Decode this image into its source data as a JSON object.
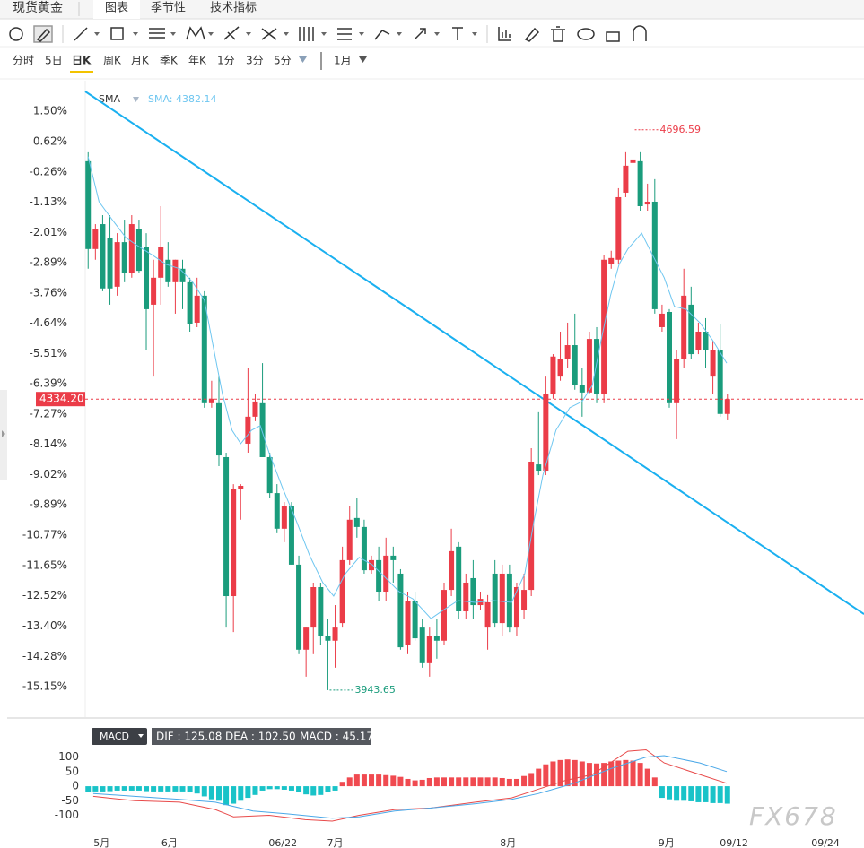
{
  "header": {
    "tabs": [
      "现货黄金",
      "图表",
      "季节性",
      "技术指标"
    ],
    "periods": [
      "分时",
      "5日",
      "日K",
      "周K",
      "月K",
      "季K",
      "年K",
      "1分",
      "3分",
      "5分",
      "1月"
    ]
  },
  "watermark": "FX678",
  "chart_data": [
    {
      "type": "candlestick",
      "x": [
        0,
        1,
        2,
        3,
        4,
        5,
        6,
        7,
        8,
        9,
        10,
        11,
        12,
        13,
        14,
        15,
        16,
        17,
        18,
        19,
        20,
        21,
        22,
        23,
        24,
        25,
        26,
        27,
        28,
        29,
        30,
        31,
        32,
        33,
        34,
        35,
        36,
        37,
        38,
        39,
        40,
        41,
        42,
        43,
        44,
        45,
        46,
        47,
        48,
        49,
        50,
        51,
        52,
        53,
        54,
        55,
        56,
        57,
        58,
        59,
        60,
        61,
        62,
        63,
        64,
        65,
        66,
        67,
        68,
        69,
        70,
        71,
        72,
        73,
        74,
        75,
        76,
        77,
        78,
        79,
        80,
        81,
        82,
        83,
        84,
        85,
        86,
        87,
        88
      ],
      "open": [
        0.05,
        -2.49,
        -1.77,
        -2.16,
        -3.58,
        -2.29,
        -3.19,
        -1.9,
        -2.42,
        -4.1,
        -3.32,
        -2.8,
        -3.45,
        -3.06,
        -3.45,
        -4.62,
        -3.84,
        -6.95,
        -6.95,
        -8.51,
        -12.53,
        -9.42,
        -8.12,
        -7.34,
        -6.95,
        -8.51,
        -9.55,
        -10.58,
        -9.93,
        -11.62,
        -14.08,
        -13.44,
        -12.27,
        -13.69,
        -13.82,
        -13.31,
        -11.49,
        -10.27,
        -10.53,
        -11.78,
        -11.49,
        -12.4,
        -11.36,
        -11.88,
        -13.95,
        -12.66,
        -13.44,
        -14.47,
        -13.69,
        -13.82,
        -12.35,
        -11.1,
        -12.97,
        -12.01,
        -12.79,
        -13.44,
        -11.88,
        -13.31,
        -11.88,
        -13.44,
        -12.92,
        -12.35,
        -8.72,
        -8.9,
        -6.69,
        -6.18,
        -5.66,
        -5.27,
        -6.43,
        -6.64,
        -5.09,
        -6.69,
        -2.93,
        -2.8,
        -0.86,
        0.0,
        0.05,
        -1.2,
        -1.12,
        -4.75,
        -4.31,
        -6.95,
        -5.66,
        -4.1,
        -5.4,
        -4.88,
        -6.18,
        -5.4,
        -7.26
      ],
      "high": [
        0.31,
        -1.77,
        -1.51,
        -1.51,
        -2.03,
        -1.64,
        -1.51,
        -1.64,
        -2.03,
        -2.8,
        -1.25,
        -2.29,
        -2.8,
        -2.8,
        -3.32,
        -3.32,
        -3.71,
        -6.3,
        -6.18,
        -8.38,
        -9.29,
        -9.29,
        -5.92,
        -6.69,
        -5.79,
        -8.38,
        -9.29,
        -9.81,
        -9.81,
        -11.36,
        -13.44,
        -12.14,
        -12.14,
        -13.18,
        -12.79,
        -11.1,
        -9.93,
        -9.68,
        -10.32,
        -11.36,
        -11.1,
        -10.84,
        -11.1,
        -11.75,
        -12.4,
        -12.4,
        -13.18,
        -13.44,
        -13.18,
        -12.14,
        -10.58,
        -10.97,
        -11.88,
        -11.49,
        -12.4,
        -12.5,
        -11.49,
        -11.62,
        -11.62,
        -12.14,
        -11.88,
        -8.25,
        -7.21,
        -6.18,
        -5.53,
        -4.88,
        -4.62,
        -4.36,
        -5.92,
        -4.88,
        -4.75,
        -2.67,
        -2.54,
        -0.73,
        0.31,
        0.96,
        0.31,
        -0.6,
        -0.47,
        -4.1,
        -4.23,
        -5.4,
        -3.06,
        -3.58,
        -4.62,
        -4.49,
        -5.14,
        -4.67,
        -6.69
      ],
      "low": [
        -3.06,
        -2.8,
        -3.71,
        -4.1,
        -3.84,
        -3.45,
        -3.32,
        -3.19,
        -5.4,
        -6.18,
        -4.1,
        -3.58,
        -4.36,
        -4.23,
        -4.88,
        -4.75,
        -7.08,
        -7.08,
        -8.77,
        -13.44,
        -13.57,
        -10.32,
        -8.38,
        -7.47,
        -8.51,
        -9.68,
        -10.71,
        -10.97,
        -11.62,
        -14.21,
        -14.86,
        -14.21,
        -13.95,
        -15.25,
        -14.6,
        -13.44,
        -11.62,
        -10.84,
        -11.88,
        -11.88,
        -12.66,
        -12.66,
        -12.14,
        -14.08,
        -14.21,
        -13.82,
        -14.6,
        -14.86,
        -14.34,
        -13.95,
        -12.53,
        -13.18,
        -13.18,
        -13.18,
        -12.92,
        -14.08,
        -13.44,
        -13.69,
        -13.57,
        -13.69,
        -13.18,
        -12.53,
        -9.03,
        -9.03,
        -6.82,
        -6.3,
        -5.92,
        -6.56,
        -7.34,
        -6.69,
        -6.95,
        -6.95,
        -3.06,
        -2.93,
        -0.99,
        -0.21,
        -1.38,
        -1.38,
        -4.36,
        -4.88,
        -7.08,
        -7.99,
        -5.92,
        -5.66,
        -5.53,
        -5.92,
        -6.69,
        -7.34,
        -7.42
      ],
      "close": [
        -2.49,
        -1.9,
        -3.63,
        -3.63,
        -2.29,
        -3.19,
        -1.77,
        -3.12,
        -4.23,
        -3.32,
        -2.42,
        -3.45,
        -2.8,
        -3.45,
        -4.67,
        -3.84,
        -6.95,
        -6.82,
        -8.46,
        -12.53,
        -9.42,
        -9.34,
        -7.34,
        -6.9,
        -8.51,
        -9.55,
        -10.58,
        -9.93,
        -11.62,
        -14.08,
        -13.44,
        -12.27,
        -13.69,
        -13.82,
        -13.44,
        -11.49,
        -10.32,
        -10.53,
        -11.78,
        -11.49,
        -12.4,
        -11.36,
        -11.49,
        -14.01,
        -12.66,
        -13.75,
        -14.47,
        -13.69,
        -13.82,
        -12.35,
        -11.23,
        -12.97,
        -12.14,
        -12.79,
        -12.61,
        -12.71,
        -13.31,
        -11.88,
        -13.44,
        -12.27,
        -12.35,
        -8.64,
        -8.9,
        -6.69,
        -5.6,
        -5.66,
        -5.27,
        -6.43,
        -6.64,
        -5.09,
        -6.69,
        -2.8,
        -2.75,
        -0.99,
        -0.08,
        0.1,
        -1.25,
        -1.12,
        -4.23,
        -4.36,
        -6.95,
        -5.66,
        -3.84,
        -5.53,
        -4.88,
        -5.4,
        -5.4,
        -7.26,
        -6.83
      ],
      "colors": {
        "up": "#eb3c48",
        "down": "#1a9c7c"
      },
      "xlim": [
        -0.4,
        106.8
      ],
      "xticks": [
        {
          "value": 1.85,
          "label": "5月"
        },
        {
          "value": 11.2,
          "label": "6月"
        },
        {
          "value": 26.8,
          "label": "06/22"
        },
        {
          "value": 34,
          "label": "7月"
        },
        {
          "value": 57.8,
          "label": "8月"
        },
        {
          "value": 79.6,
          "label": "9月"
        },
        {
          "value": 88.9,
          "label": "09/12"
        },
        {
          "value": 101.5,
          "label": "09/24"
        }
      ],
      "ylim": [
        -16.03,
        2.38
      ],
      "yticks": [
        {
          "value": 1.5,
          "label": "1.50%"
        },
        {
          "value": 0.62,
          "label": "0.62%"
        },
        {
          "value": -0.26,
          "label": "-0.26%"
        },
        {
          "value": -1.13,
          "label": "-1.13%"
        },
        {
          "value": -2.01,
          "label": "-2.01%"
        },
        {
          "value": -2.89,
          "label": "-2.89%"
        },
        {
          "value": -3.76,
          "label": "-3.76%"
        },
        {
          "value": -4.64,
          "label": "-4.64%"
        },
        {
          "value": -5.51,
          "label": "-5.51%"
        },
        {
          "value": -6.39,
          "label": "-6.39%"
        },
        {
          "value": -7.27,
          "label": "-7.27%"
        },
        {
          "value": -8.14,
          "label": "-8.14%"
        },
        {
          "value": -9.02,
          "label": "-9.02%"
        },
        {
          "value": -9.89,
          "label": "-9.89%"
        },
        {
          "value": -10.77,
          "label": "-10.77%"
        },
        {
          "value": -11.65,
          "label": "-11.65%"
        },
        {
          "value": -12.52,
          "label": "-12.52%"
        },
        {
          "value": -13.4,
          "label": "-13.40%"
        },
        {
          "value": -14.28,
          "label": "-14.28%"
        },
        {
          "value": -15.15,
          "label": "-15.15%"
        }
      ],
      "sma": {
        "name": "SMA",
        "label": "SMA: 4382.14",
        "color": "#6ec6f0",
        "x": [
          0,
          1.5,
          3.3,
          5.2,
          7.0,
          8.9,
          10.7,
          12.6,
          14.4,
          16.0,
          17.3,
          18.5,
          19.8,
          21.0,
          22.5,
          23.7,
          24.9,
          26.8,
          28.6,
          30.5,
          32.3,
          33.8,
          35.4,
          37.3,
          39.1,
          41.0,
          42.8,
          44.7,
          47.2,
          49.0,
          50.9,
          53.3,
          55.8,
          58.3,
          60.1,
          61.4,
          62.6,
          64.4,
          66.3,
          68.0,
          69.4,
          70.6,
          71.9,
          73.1,
          74.3,
          76.2,
          77.4,
          79.3,
          80.7,
          82.3,
          84.2,
          86.0,
          87.9
        ],
        "values": [
          0.18,
          -1.12,
          -1.64,
          -2.16,
          -2.42,
          -2.67,
          -2.93,
          -3.06,
          -3.45,
          -3.97,
          -5.4,
          -6.69,
          -7.73,
          -8.12,
          -7.73,
          -7.6,
          -8.38,
          -9.42,
          -10.32,
          -11.36,
          -12.14,
          -12.53,
          -11.88,
          -11.41,
          -11.62,
          -12.01,
          -12.4,
          -12.61,
          -13.18,
          -12.92,
          -12.66,
          -12.71,
          -12.66,
          -12.71,
          -11.88,
          -10.32,
          -9.03,
          -7.73,
          -7.08,
          -6.9,
          -6.43,
          -5.14,
          -3.84,
          -2.93,
          -2.49,
          -2.03,
          -2.54,
          -3.32,
          -4.15,
          -4.23,
          -4.62,
          -5.14,
          -5.79
        ]
      },
      "trendline": {
        "color": "#1ab0f0",
        "x": [
          -0.4,
          106.8
        ],
        "values": [
          2.07,
          -13.05
        ]
      },
      "last_price": {
        "value": -6.83,
        "label": "4334.20",
        "color": "#eb3c48"
      },
      "annotations": [
        {
          "text": "4696.59",
          "x": 75,
          "y": 0.96,
          "color": "#eb3c48"
        },
        {
          "text": "3943.65",
          "x": 33,
          "y": -15.25,
          "color": "#1a9c7c"
        }
      ]
    },
    {
      "type": "macd",
      "indicator": "MACD",
      "ylim": [
        -163,
        145
      ],
      "yticks": [
        100,
        50,
        0,
        -50,
        -100
      ],
      "colors": {
        "up": "#f04a50",
        "down": "#19c3c8"
      },
      "histogram": {
        "label": "MACD : 45.17",
        "values": [
          -20,
          -18,
          -18,
          -17,
          -15,
          -15,
          -15,
          -15,
          -17,
          -18,
          -18,
          -18,
          -18,
          -18,
          -20,
          -25,
          -35,
          -45,
          -50,
          -65,
          -60,
          -50,
          -40,
          -30,
          -15,
          -10,
          -10,
          -12,
          -15,
          -20,
          -28,
          -32,
          -30,
          -20,
          -15,
          15,
          30,
          40,
          40,
          40,
          40,
          38,
          36,
          32,
          25,
          20,
          22,
          28,
          30,
          30,
          30,
          30,
          30,
          30,
          30,
          30,
          30,
          28,
          25,
          25,
          35,
          45,
          60,
          75,
          85,
          90,
          92,
          90,
          85,
          80,
          78,
          80,
          85,
          88,
          90,
          88,
          80,
          60,
          30,
          -40,
          -45,
          -50,
          -50,
          -52,
          -55,
          -55,
          -58,
          -58,
          -60
        ]
      },
      "series": [
        {
          "label": "DIF : 125.08",
          "color": "#e84a4a",
          "x": [
            0.7,
            6.4,
            12.6,
            17.5,
            20,
            24.9,
            29.9,
            33.6,
            37.3,
            42.2,
            47.2,
            53.3,
            58.3,
            62,
            65.7,
            69.4,
            74.3,
            76.8,
            79.3,
            84.2,
            87.9
          ],
          "values": [
            -35,
            -50,
            -55,
            -80,
            -105,
            -100,
            -115,
            -120,
            -100,
            -80,
            -75,
            -55,
            -40,
            -10,
            20,
            40,
            120,
            125,
            80,
            40,
            10
          ]
        },
        {
          "label": "DEA : 102.50",
          "color": "#4aa8e8",
          "x": [
            0.7,
            6.4,
            12.6,
            17.5,
            22.7,
            27.4,
            33.6,
            37.3,
            42.2,
            47.2,
            53.3,
            58.3,
            62,
            66.9,
            71.9,
            76.8,
            79.3,
            84.2,
            87.9
          ],
          "values": [
            -25,
            -35,
            -45,
            -55,
            -85,
            -95,
            -110,
            -105,
            -85,
            -75,
            -60,
            -45,
            -25,
            10,
            60,
            100,
            105,
            80,
            50
          ]
        }
      ]
    }
  ]
}
